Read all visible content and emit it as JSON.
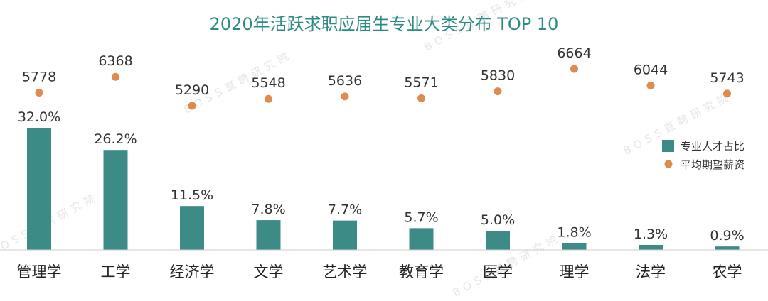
{
  "chart_data": {
    "type": "bar",
    "title": "2020年活跃求职应届生专业大类分布 TOP 10",
    "categories": [
      "管理学",
      "工学",
      "经济学",
      "文学",
      "艺术学",
      "教育学",
      "医学",
      "理学",
      "法学",
      "农学"
    ],
    "series": [
      {
        "name": "专业人才占比",
        "type": "bar",
        "values": [
          32.0,
          26.2,
          11.5,
          7.8,
          7.7,
          5.7,
          5.0,
          1.8,
          1.3,
          0.9
        ],
        "labels": [
          "32.0%",
          "26.2%",
          "11.5%",
          "7.8%",
          "7.7%",
          "5.7%",
          "5.0%",
          "1.8%",
          "1.3%",
          "0.9%"
        ],
        "color": "#3d8b87"
      },
      {
        "name": "平均期望薪资",
        "type": "scatter",
        "values": [
          5778,
          6368,
          5290,
          5548,
          5636,
          5571,
          5830,
          6664,
          6044,
          5743
        ],
        "labels": [
          "5778",
          "6368",
          "5290",
          "5548",
          "5636",
          "5571",
          "5830",
          "6664",
          "6044",
          "5743"
        ],
        "color": "#e08a4e"
      }
    ],
    "legend_position": "right",
    "grid": false,
    "bar_ylim": [
      0,
      32
    ],
    "dot_ylim": [
      5290,
      6664
    ]
  },
  "watermark": {
    "text": "BOSS直聘研究院"
  },
  "colors": {
    "title": "#2e8b84",
    "bar": "#3d8b87",
    "dot": "#e08a4e",
    "axis": "#cccccc"
  }
}
